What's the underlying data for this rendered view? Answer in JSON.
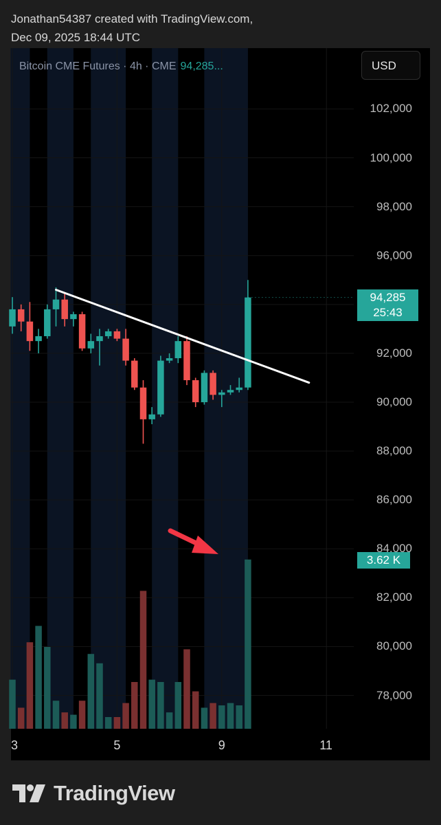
{
  "attribution": {
    "line1": "Jonathan54387 created with TradingView.com,",
    "line2": "Dec 09, 2025 18:44 UTC"
  },
  "legend": {
    "symbol": "Bitcoin CME Futures",
    "sep1": " · ",
    "interval": "4h",
    "sep2": " · ",
    "exchange": "CME",
    "price": "94,285..."
  },
  "currency_button": "USD",
  "price_tag": {
    "price": "94,285",
    "countdown": "25:43"
  },
  "volume_tag": "3.62 K",
  "brand": "TradingView",
  "colors": {
    "up": "#26a69a",
    "down": "#ef5350",
    "up_volume": "#1c5c57",
    "down_volume": "#7a3030",
    "session_shade": "#0b1423",
    "trendline": "#ffffff",
    "annotation_arrow": "#f23645"
  },
  "chart_data": {
    "type": "candlestick",
    "title": "Bitcoin CME Futures · 4h · CME",
    "currency": "USD",
    "last_price": 94285,
    "y_axis": {
      "ticks": [
        78000,
        80000,
        82000,
        84000,
        86000,
        88000,
        90000,
        92000,
        94000,
        96000,
        98000,
        100000,
        102000
      ],
      "tick_labels": [
        "78,000",
        "80,000",
        "82,000",
        "84,000",
        "86,000",
        "88,000",
        "90,000",
        "92,000",
        "94,000",
        "96,000",
        "98,000",
        "100,000",
        "102,000"
      ],
      "ylim": [
        76300,
        104600
      ]
    },
    "x_axis": {
      "ticks": [
        {
          "label": "3",
          "index": 0
        },
        {
          "label": "5",
          "index": 12
        },
        {
          "label": "9",
          "index": 24
        },
        {
          "label": "11",
          "index": 36
        }
      ],
      "xlim": [
        0,
        41
      ]
    },
    "candles": [
      {
        "o": 93100,
        "h": 94300,
        "l": 92800,
        "c": 93800
      },
      {
        "o": 93800,
        "h": 94000,
        "l": 92900,
        "c": 93300
      },
      {
        "o": 93300,
        "h": 94100,
        "l": 92100,
        "c": 92500
      },
      {
        "o": 92500,
        "h": 93000,
        "l": 92000,
        "c": 92700
      },
      {
        "o": 92700,
        "h": 94000,
        "l": 92600,
        "c": 93800
      },
      {
        "o": 93800,
        "h": 94700,
        "l": 93100,
        "c": 94200
      },
      {
        "o": 94200,
        "h": 94500,
        "l": 93100,
        "c": 93400
      },
      {
        "o": 93400,
        "h": 93700,
        "l": 93100,
        "c": 93600
      },
      {
        "o": 93600,
        "h": 93700,
        "l": 92100,
        "c": 92200
      },
      {
        "o": 92200,
        "h": 92800,
        "l": 92000,
        "c": 92500
      },
      {
        "o": 92500,
        "h": 93000,
        "l": 91500,
        "c": 92700
      },
      {
        "o": 92700,
        "h": 93000,
        "l": 92600,
        "c": 92900
      },
      {
        "o": 92900,
        "h": 93000,
        "l": 92500,
        "c": 92600
      },
      {
        "o": 92600,
        "h": 93000,
        "l": 91500,
        "c": 91700
      },
      {
        "o": 91700,
        "h": 91800,
        "l": 90500,
        "c": 90600
      },
      {
        "o": 90600,
        "h": 90900,
        "l": 88300,
        "c": 89300
      },
      {
        "o": 89300,
        "h": 89800,
        "l": 89100,
        "c": 89500
      },
      {
        "o": 89500,
        "h": 91900,
        "l": 89400,
        "c": 91700
      },
      {
        "o": 91700,
        "h": 92000,
        "l": 91600,
        "c": 91800
      },
      {
        "o": 91800,
        "h": 92700,
        "l": 91600,
        "c": 92500
      },
      {
        "o": 92500,
        "h": 92700,
        "l": 90700,
        "c": 90900
      },
      {
        "o": 90900,
        "h": 91000,
        "l": 89800,
        "c": 90000
      },
      {
        "o": 90000,
        "h": 91300,
        "l": 89900,
        "c": 91200
      },
      {
        "o": 91200,
        "h": 91300,
        "l": 90100,
        "c": 90300
      },
      {
        "o": 90300,
        "h": 90500,
        "l": 89800,
        "c": 90400
      },
      {
        "o": 90400,
        "h": 90700,
        "l": 90300,
        "c": 90500
      },
      {
        "o": 90500,
        "h": 91000,
        "l": 90400,
        "c": 90600
      },
      {
        "o": 90600,
        "h": 95000,
        "l": 90500,
        "c": 94285
      }
    ],
    "volume": {
      "max_label": "3.62 K",
      "values": [
        1.05,
        0.45,
        1.85,
        2.2,
        1.75,
        0.6,
        0.35,
        0.3,
        0.6,
        1.6,
        1.4,
        0.25,
        0.25,
        0.55,
        1.0,
        2.95,
        1.05,
        1.0,
        0.35,
        1.0,
        1.7,
        0.8,
        0.45,
        0.55,
        0.5,
        0.55,
        0.5,
        3.62
      ]
    },
    "trendline": {
      "from": {
        "index": 5,
        "price": 94600
      },
      "to": {
        "index": 34,
        "price": 90800
      }
    },
    "annotation": {
      "type": "arrow",
      "color": "#f23645"
    }
  }
}
